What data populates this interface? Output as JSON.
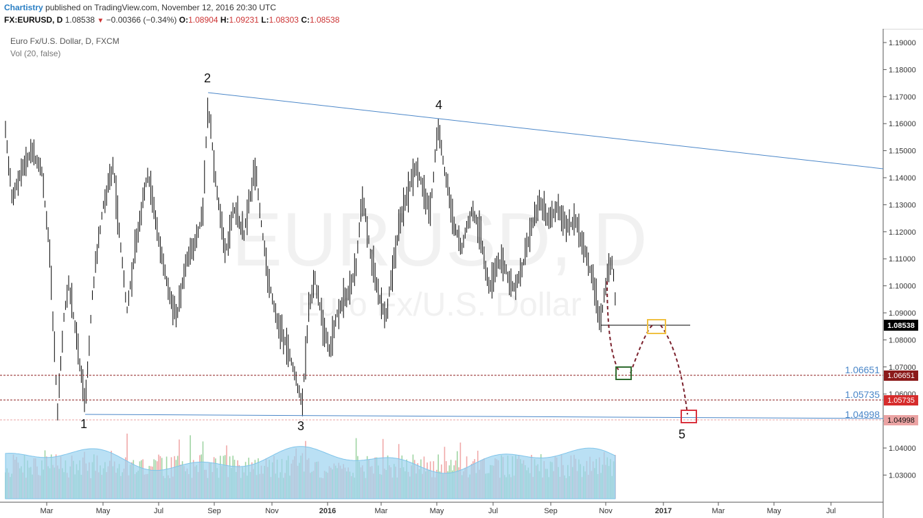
{
  "header": {
    "author": "Chartistry",
    "published_text": "published on TradingView.com, November 12, 2016 20:30 UTC",
    "symbol": "FX:EURUSD, D",
    "last": "1.08538",
    "change": "−0.00366 (−0.34%)",
    "open_label": "O:",
    "open": "1.08904",
    "high_label": "H:",
    "high": "1.09231",
    "low_label": "L:",
    "low": "1.08303",
    "close_label": "C:",
    "close": "1.08538"
  },
  "legend": {
    "series": "Euro Fx/U.S. Dollar, D, FXCM",
    "volume": "Vol (20, false)"
  },
  "watermark": {
    "symbol": "EURUSD, D",
    "name": "Euro Fx/U.S. Dollar"
  },
  "chart_data": {
    "type": "candlestick",
    "y_axis_ticks": [
      "1.19000",
      "1.18000",
      "1.17000",
      "1.16000",
      "1.15000",
      "1.14000",
      "1.13000",
      "1.12000",
      "1.11000",
      "1.10000",
      "1.09000",
      "1.08000",
      "1.07000",
      "1.06000",
      "1.05000",
      "1.04000",
      "1.03000"
    ],
    "x_axis_ticks": [
      "Mar",
      "May",
      "Jul",
      "Sep",
      "Nov",
      "2016",
      "Mar",
      "May",
      "Jul",
      "Sep",
      "Nov",
      "2017",
      "Mar",
      "May",
      "Jul"
    ],
    "price_label_current": "1.08538",
    "levels": [
      {
        "value": "1.06651",
        "color": "#8b1a1a"
      },
      {
        "value": "1.05735",
        "color": "#8b1a1a"
      },
      {
        "value": "1.04998",
        "color": "#e8a0a0"
      }
    ],
    "wave_labels": [
      "1",
      "2",
      "3",
      "4",
      "5"
    ],
    "colors": {
      "trendline": "#4a86c8",
      "bars": "#000000",
      "volume_up": "#9fd4a3",
      "volume_down": "#f0a8a8",
      "volume_ma": "#9dd3f0",
      "projection": "#7a1f2b"
    }
  }
}
